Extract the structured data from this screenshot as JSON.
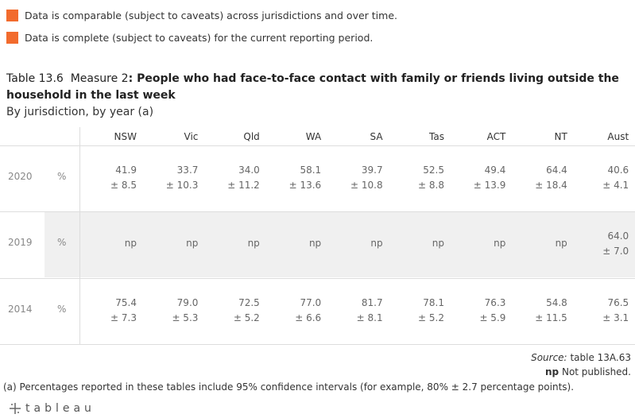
{
  "legend": [
    "Data is comparable (subject to caveats) across jurisdictions and over time.",
    "Data is complete (subject to caveats) for the current reporting period."
  ],
  "title": {
    "prefix": "Table 13.6  Measure 2",
    "text": ": People who had face-to-face contact with family or friends living outside the household in the last week"
  },
  "subtitle": "By jurisdiction, by year (a)",
  "table": {
    "columns": [
      "NSW",
      "Vic",
      "Qld",
      "WA",
      "SA",
      "Tas",
      "ACT",
      "NT",
      "Aust"
    ],
    "rows": [
      {
        "year": "2020",
        "unit": "%",
        "cells": [
          [
            "41.9",
            "± 8.5"
          ],
          [
            "33.7",
            "± 10.3"
          ],
          [
            "34.0",
            "± 11.2"
          ],
          [
            "58.1",
            "± 13.6"
          ],
          [
            "39.7",
            "± 10.8"
          ],
          [
            "52.5",
            "± 8.8"
          ],
          [
            "49.4",
            "± 13.9"
          ],
          [
            "64.4",
            "± 18.4"
          ],
          [
            "40.6",
            "± 4.1"
          ]
        ]
      },
      {
        "year": "2019",
        "unit": "%",
        "cells": [
          [
            "np"
          ],
          [
            "np"
          ],
          [
            "np"
          ],
          [
            "np"
          ],
          [
            "np"
          ],
          [
            "np"
          ],
          [
            "np"
          ],
          [
            "np"
          ],
          [
            "64.0",
            "± 7.0"
          ]
        ]
      },
      {
        "year": "2014",
        "unit": "%",
        "cells": [
          [
            "75.4",
            "± 7.3"
          ],
          [
            "79.0",
            "± 5.3"
          ],
          [
            "72.5",
            "± 5.2"
          ],
          [
            "77.0",
            "± 6.6"
          ],
          [
            "81.7",
            "± 8.1"
          ],
          [
            "78.1",
            "± 5.2"
          ],
          [
            "76.3",
            "± 5.9"
          ],
          [
            "54.8",
            "± 11.5"
          ],
          [
            "76.5",
            "± 3.1"
          ]
        ]
      }
    ]
  },
  "source": {
    "label": "Source:",
    "text": "table 13A.63"
  },
  "np_note": {
    "abbr": "np",
    "text": "Not published."
  },
  "footnote": "(a) Percentages reported in these tables include 95% confidence intervals (for example, 80% ± 2.7 percentage points).",
  "brand": "tableau"
}
